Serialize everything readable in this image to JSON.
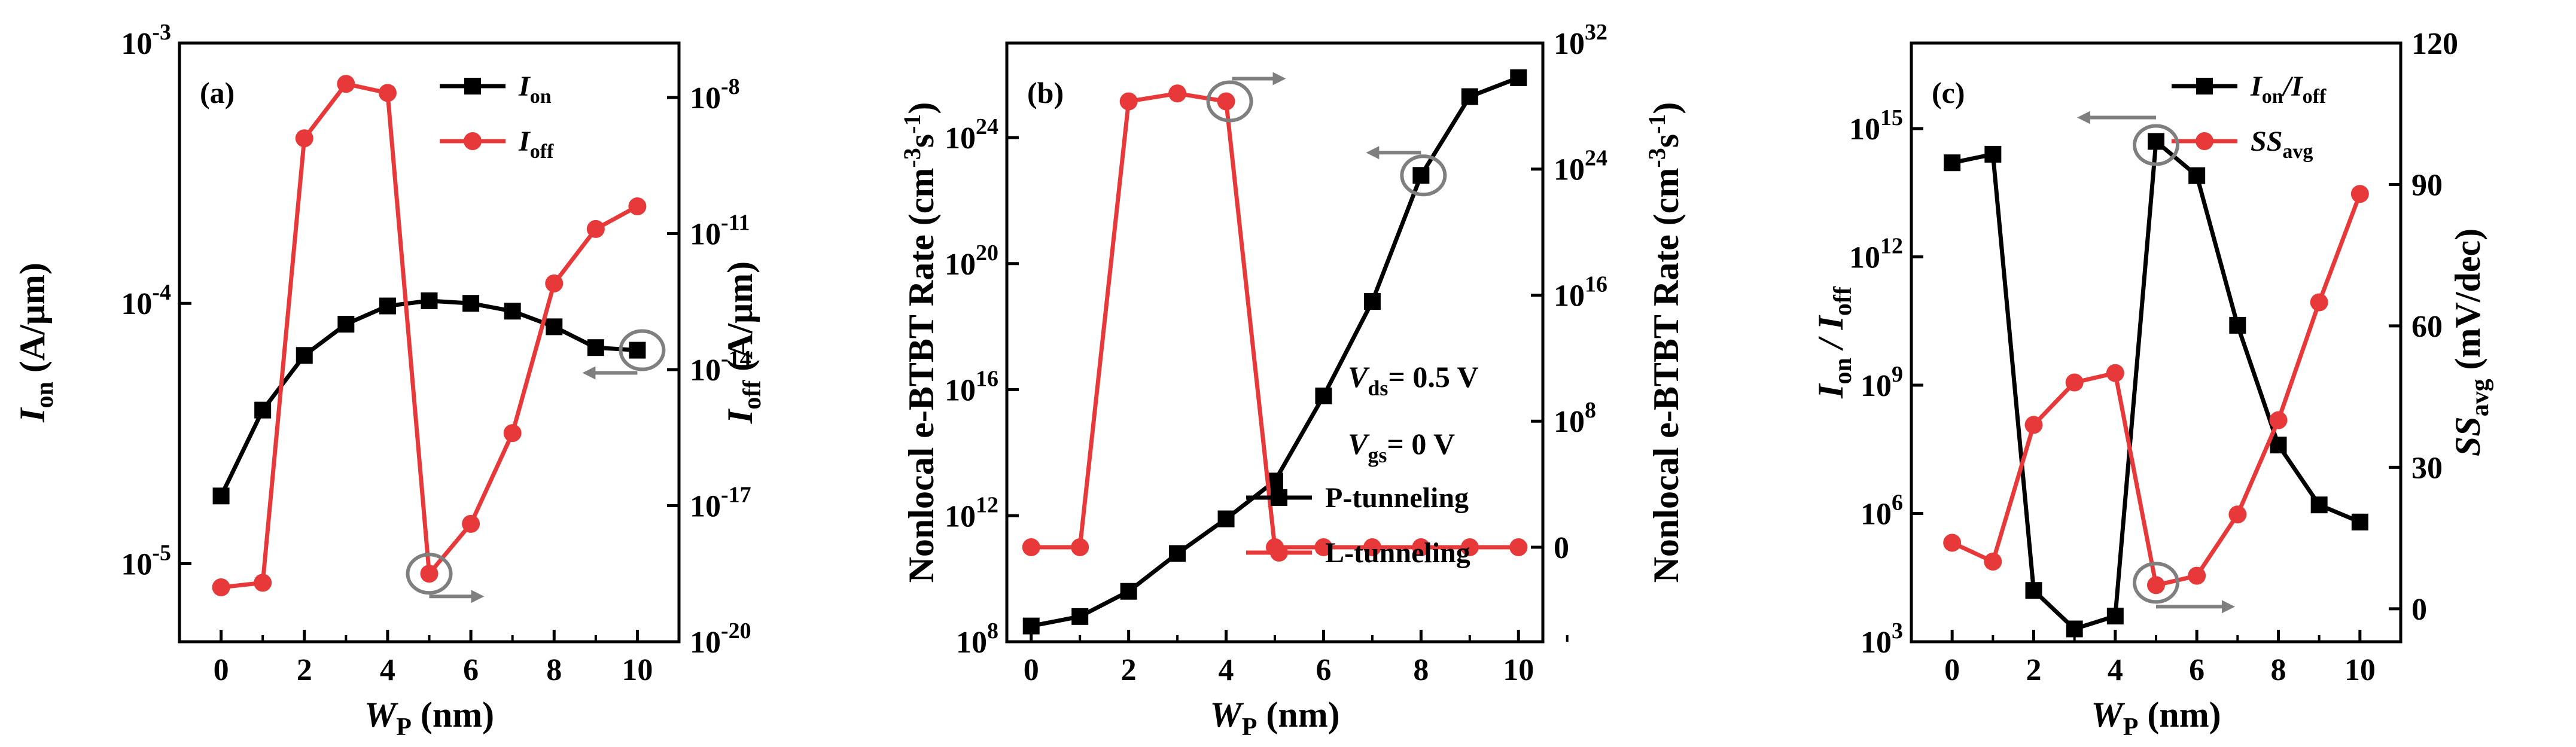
{
  "colors": {
    "black": "#000000",
    "red": "#e8393a",
    "gray": "#7f7f7f"
  },
  "chart_data": [
    {
      "panel": "(a)",
      "type": "line",
      "x": [
        0,
        1,
        2,
        3,
        4,
        5,
        6,
        7,
        8,
        9,
        10
      ],
      "xlabel": "W",
      "xlabel_sub": "P",
      "xlabel_unit": " (nm)",
      "xticks": [
        "0",
        "2",
        "4",
        "6",
        "8",
        "10"
      ],
      "xlim": [
        -1,
        11
      ],
      "left_axis": {
        "scale": "log",
        "ylim_log10": [
          -5.3,
          -3
        ],
        "label": "I",
        "label_sub": "on",
        "label_unit": " (A/μm)",
        "ticks": [
          {
            "base": "10",
            "exp": "-3",
            "log10": -3
          },
          {
            "base": "10",
            "exp": "-4",
            "log10": -4
          },
          {
            "base": "10",
            "exp": "-5",
            "log10": -5
          }
        ]
      },
      "right_axis": {
        "scale": "log",
        "ylim_log10": [
          -20,
          -6.8
        ],
        "label": "I",
        "label_sub": "off",
        "label_unit": " (A/μm)",
        "ticks": [
          {
            "base": "10",
            "exp": "-8",
            "log10": -8
          },
          {
            "base": "10",
            "exp": "-11",
            "log10": -11
          },
          {
            "base": "10",
            "exp": "-14",
            "log10": -14
          },
          {
            "base": "10",
            "exp": "-17",
            "log10": -17
          },
          {
            "base": "10",
            "exp": "-20",
            "log10": -20
          }
        ]
      },
      "series": [
        {
          "name": "I",
          "name_sub": "on",
          "axis": "left",
          "color": "black",
          "marker": "square",
          "values_log10": [
            -4.74,
            -4.41,
            -4.2,
            -4.08,
            -4.01,
            -3.99,
            -4.0,
            -4.03,
            -4.09,
            -4.17,
            -4.18
          ]
        },
        {
          "name": "I",
          "name_sub": "off",
          "axis": "right",
          "color": "red",
          "marker": "circle",
          "values_log10": [
            -18.8,
            -18.7,
            -8.9,
            -7.7,
            -7.9,
            -18.5,
            -17.4,
            -15.4,
            -12.1,
            -10.9,
            -10.4
          ]
        }
      ],
      "legend": "top-right"
    },
    {
      "panel": "(b)",
      "type": "line",
      "x": [
        0,
        1,
        2,
        3,
        4,
        5,
        6,
        7,
        8,
        9,
        10
      ],
      "xlabel": "W",
      "xlabel_sub": "P",
      "xlabel_unit": " (nm)",
      "xticks": [
        "0",
        "2",
        "4",
        "6",
        "8",
        "10"
      ],
      "xlim": [
        -0.5,
        10.5
      ],
      "left_axis": {
        "scale": "log",
        "ylim_log10": [
          8,
          27
        ],
        "label": "Nonlocal e-BTBT Rate (cm",
        "label_unit": "s",
        "exps": [
          "-3",
          "-1"
        ],
        "ticks": [
          {
            "base": "10",
            "exp": "8",
            "log10": 8
          },
          {
            "base": "10",
            "exp": "12",
            "log10": 12
          },
          {
            "base": "10",
            "exp": "16",
            "log10": 16
          },
          {
            "base": "10",
            "exp": "20",
            "log10": 20
          },
          {
            "base": "10",
            "exp": "24",
            "log10": 24
          }
        ]
      },
      "right_axis": {
        "scale": "log",
        "ylim_log10": [
          -6,
          32
        ],
        "label": "Nonlocal e-BTBT Rate (cm",
        "label_unit": "s",
        "exps": [
          "-3",
          "-1"
        ],
        "ticks": [
          {
            "text": "0",
            "log10": 0
          },
          {
            "base": "10",
            "exp": "8",
            "log10": 8
          },
          {
            "base": "10",
            "exp": "16",
            "log10": 16
          },
          {
            "base": "10",
            "exp": "24",
            "log10": 24
          },
          {
            "base": "10",
            "exp": "32",
            "log10": 32
          }
        ]
      },
      "series": [
        {
          "name": "P-tunneling",
          "axis": "left",
          "color": "black",
          "marker": "square",
          "values_log10": [
            8.5,
            8.8,
            9.6,
            10.8,
            11.9,
            13.1,
            15.8,
            18.8,
            22.8,
            25.3,
            25.9
          ]
        },
        {
          "name": "L-tunneling",
          "axis": "right",
          "color": "red",
          "marker": "circle",
          "values_log10": [
            0,
            0,
            28.3,
            28.8,
            28.3,
            0,
            0,
            0,
            0,
            0,
            0
          ]
        }
      ],
      "annotations": [
        {
          "text": "V",
          "sub": "ds",
          "rest": "= 0.5 V"
        },
        {
          "text": "V",
          "sub": "gs",
          "rest": "= 0 V"
        }
      ],
      "legend": "bottom-right"
    },
    {
      "panel": "(c)",
      "type": "line",
      "x": [
        0,
        1,
        2,
        3,
        4,
        5,
        6,
        7,
        8,
        9,
        10
      ],
      "xlabel": "W",
      "xlabel_sub": "P",
      "xlabel_unit": " (nm)",
      "xticks": [
        "0",
        "2",
        "4",
        "6",
        "8",
        "10"
      ],
      "xlim": [
        -1,
        11
      ],
      "left_axis": {
        "scale": "log",
        "ylim_log10": [
          3,
          17
        ],
        "label": "I",
        "label_sub": "on",
        "label_mid": " / I",
        "label_sub2": "off",
        "ticks": [
          {
            "base": "10",
            "exp": "3",
            "log10": 3
          },
          {
            "base": "10",
            "exp": "6",
            "log10": 6
          },
          {
            "base": "10",
            "exp": "9",
            "log10": 9
          },
          {
            "base": "10",
            "exp": "12",
            "log10": 12
          },
          {
            "base": "10",
            "exp": "15",
            "log10": 15
          }
        ]
      },
      "right_axis": {
        "scale": "linear",
        "ylim": [
          -7,
          120
        ],
        "label": "SS",
        "label_sub": "avg",
        "label_unit": " (mV/dec)",
        "ticks": [
          {
            "text": "0",
            "value": 0
          },
          {
            "text": "30",
            "value": 30
          },
          {
            "text": "60",
            "value": 60
          },
          {
            "text": "90",
            "value": 90
          },
          {
            "text": "120",
            "value": 120
          }
        ]
      },
      "series": [
        {
          "name": "I",
          "name_sub": "on",
          "name_mid": "/I",
          "name_sub2": "off",
          "axis": "left",
          "color": "black",
          "marker": "square",
          "values_log10": [
            14.2,
            14.4,
            4.2,
            3.3,
            3.6,
            14.7,
            13.9,
            10.4,
            7.6,
            6.2,
            5.8
          ]
        },
        {
          "name": "SS",
          "name_sub": "avg",
          "axis": "right",
          "color": "red",
          "marker": "circle",
          "values": [
            14,
            10,
            39,
            48,
            50,
            5,
            7,
            20,
            40,
            65,
            88
          ]
        }
      ],
      "legend": "top-right"
    }
  ]
}
